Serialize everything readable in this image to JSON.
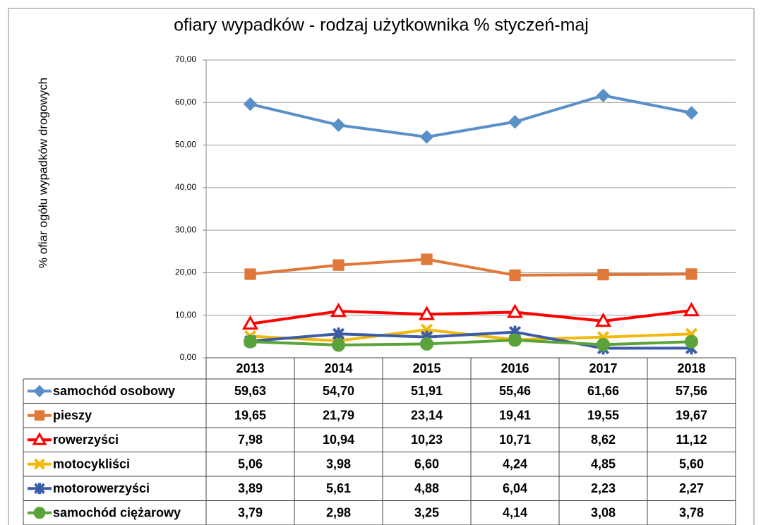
{
  "chart_data": {
    "type": "line",
    "title": "ofiary wypadków - rodzaj użytkownika % styczeń-maj",
    "y_label": "% ofiar ogółu wypadków drogowych",
    "categories": [
      "2013",
      "2014",
      "2015",
      "2016",
      "2017",
      "2018"
    ],
    "ylim": [
      0,
      70
    ],
    "yticks": [
      {
        "value": 0,
        "label": "0,00"
      },
      {
        "value": 10,
        "label": "10,00"
      },
      {
        "value": 20,
        "label": "20,00"
      },
      {
        "value": 30,
        "label": "30,00"
      },
      {
        "value": 40,
        "label": "40,00"
      },
      {
        "value": 50,
        "label": "50,00"
      },
      {
        "value": 60,
        "label": "60,00"
      },
      {
        "value": 70,
        "label": "70,00"
      }
    ],
    "grid": true,
    "series": [
      {
        "name": "samochód osobowy",
        "color": "#5b8fc8",
        "marker": "diamond",
        "values": [
          59.63,
          54.7,
          51.91,
          55.46,
          61.66,
          57.56
        ],
        "value_labels": [
          "59,63",
          "54,70",
          "51,91",
          "55,46",
          "61,66",
          "57,56"
        ]
      },
      {
        "name": "pieszy",
        "color": "#e0783a",
        "marker": "square",
        "values": [
          19.65,
          21.79,
          23.14,
          19.41,
          19.55,
          19.67
        ],
        "value_labels": [
          "19,65",
          "21,79",
          "23,14",
          "19,41",
          "19,55",
          "19,67"
        ]
      },
      {
        "name": "rowerzyści",
        "color": "#ff0000",
        "marker": "triangle",
        "values": [
          7.98,
          10.94,
          10.23,
          10.71,
          8.62,
          11.12
        ],
        "value_labels": [
          "7,98",
          "10,94",
          "10,23",
          "10,71",
          "8,62",
          "11,12"
        ]
      },
      {
        "name": "motocykliści",
        "color": "#f2b90c",
        "marker": "x",
        "values": [
          5.06,
          3.98,
          6.6,
          4.24,
          4.85,
          5.6
        ],
        "value_labels": [
          "5,06",
          "3,98",
          "6,60",
          "4,24",
          "4,85",
          "5,60"
        ]
      },
      {
        "name": "motorowerzyści",
        "color": "#3d5ca8",
        "marker": "star",
        "values": [
          3.89,
          5.61,
          4.88,
          6.04,
          2.23,
          2.27
        ],
        "value_labels": [
          "3,89",
          "5,61",
          "4,88",
          "6,04",
          "2,23",
          "2,27"
        ]
      },
      {
        "name": "samochód ciężarowy",
        "color": "#5aa33a",
        "marker": "circle",
        "values": [
          3.79,
          2.98,
          3.25,
          4.14,
          3.08,
          3.78
        ],
        "value_labels": [
          "3,79",
          "2,98",
          "3,25",
          "4,14",
          "3,08",
          "3,78"
        ]
      }
    ]
  }
}
